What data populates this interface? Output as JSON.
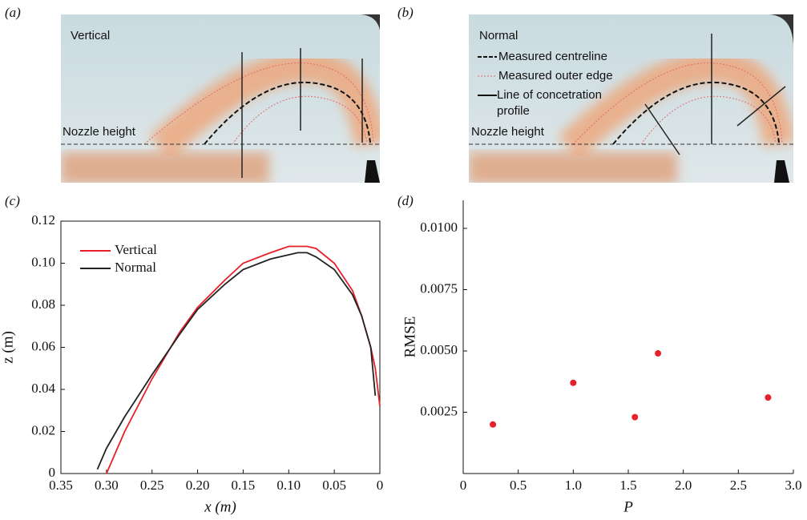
{
  "chart_data": [
    {
      "type": "image",
      "label": "(a)",
      "annotations": [
        "Vertical",
        "Nozzle height"
      ]
    },
    {
      "type": "image",
      "label": "(b)",
      "annotations": [
        "Normal",
        "Nozzle height"
      ],
      "legend": [
        "Measured centreline",
        "Measured outer edge",
        "Line of concetration profile"
      ]
    },
    {
      "type": "line",
      "label": "(c)",
      "xlabel": "x (m)",
      "ylabel": "z (m)",
      "x": [
        0.31,
        0.3,
        0.28,
        0.25,
        0.22,
        0.2,
        0.17,
        0.15,
        0.12,
        0.1,
        0.09,
        0.08,
        0.07,
        0.05,
        0.03,
        0.02,
        0.01,
        0.005,
        0
      ],
      "series": [
        {
          "name": "Vertical",
          "color": "#e8202a",
          "values": [
            null,
            0,
            0.02,
            0.045,
            0.067,
            0.079,
            0.092,
            0.1,
            0.105,
            0.108,
            0.108,
            0.108,
            0.107,
            0.1,
            0.087,
            0.075,
            0.06,
            0.05,
            0.032
          ]
        },
        {
          "name": "Normal",
          "color": "#222222",
          "values": [
            0.002,
            0.012,
            0.027,
            0.047,
            0.066,
            0.078,
            0.09,
            0.097,
            0.102,
            0.104,
            0.105,
            0.105,
            0.103,
            0.097,
            0.085,
            0.075,
            0.06,
            0.037,
            null
          ]
        }
      ],
      "xlim": [
        0.35,
        0
      ],
      "xticks": [
        0.35,
        {
          "value": 0.3,
          "label": "0.30"
        },
        0.25,
        {
          "value": 0.2,
          "label": "0.20"
        },
        0.15,
        {
          "value": 0.1,
          "label": "0.10"
        },
        0.05,
        0
      ],
      "ylim": [
        0,
        0.12
      ],
      "yticks": [
        0,
        0.02,
        0.04,
        0.06,
        0.08,
        {
          "value": 0.1,
          "label": "0.10"
        },
        0.12
      ]
    },
    {
      "type": "scatter",
      "label": "(d)",
      "xlabel": "P",
      "ylabel": "RMSE",
      "color": "#e8202a",
      "x": [
        0.27,
        1.0,
        1.56,
        1.77,
        2.77
      ],
      "values": [
        0.002,
        0.0037,
        0.0023,
        0.0049,
        0.0031
      ],
      "xlim": [
        0,
        3
      ],
      "xticks": [
        0,
        0.5,
        {
          "value": 1,
          "label": "1.0"
        },
        1.5,
        {
          "value": 2,
          "label": "2.0"
        },
        2.5,
        {
          "value": 3,
          "label": "3.0"
        }
      ],
      "ylim": [
        0,
        0.01
      ],
      "yticks": [
        0.0025,
        {
          "value": 0.005,
          "label": "0.0050"
        },
        0.0075,
        {
          "value": 0.01,
          "label": "0.0100"
        }
      ]
    }
  ]
}
